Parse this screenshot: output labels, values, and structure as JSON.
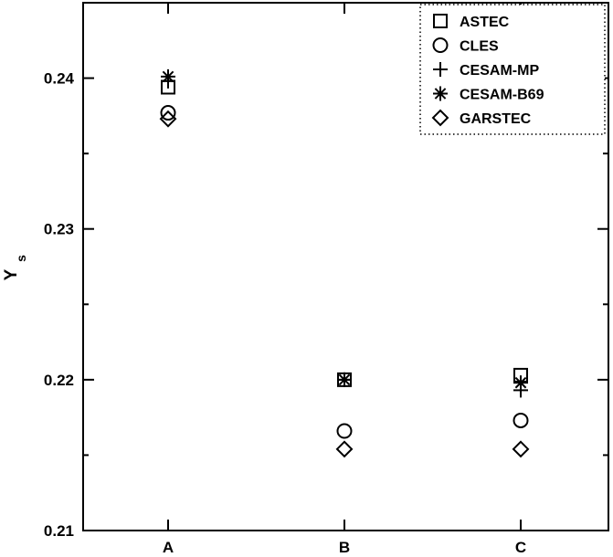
{
  "chart_data": {
    "type": "scatter",
    "title": "",
    "xlabel": "",
    "ylabel": "Y",
    "ylabel_subscript": "s",
    "categories": [
      "A",
      "B",
      "C"
    ],
    "ylim": [
      0.21,
      0.245
    ],
    "yticks": [
      0.21,
      0.22,
      0.23,
      0.24
    ],
    "ytick_labels": [
      "0.21",
      "0.22",
      "0.23",
      "0.24"
    ],
    "grid": false,
    "legend_position": "top-right",
    "legend_border": "dotted",
    "series": [
      {
        "name": "ASTEC",
        "marker": "square",
        "values": [
          0.2394,
          0.22,
          0.2203
        ]
      },
      {
        "name": "CLES",
        "marker": "circle",
        "values": [
          0.2377,
          0.2166,
          0.2173
        ]
      },
      {
        "name": "CESAM-MP",
        "marker": "plus",
        "values": [
          0.2398,
          0.22,
          0.2193
        ]
      },
      {
        "name": "CESAM-B69",
        "marker": "asterisk",
        "values": [
          0.2401,
          0.22,
          0.2198
        ]
      },
      {
        "name": "GARSTEC",
        "marker": "diamond",
        "values": [
          0.2373,
          0.2154,
          0.2154
        ]
      }
    ]
  }
}
